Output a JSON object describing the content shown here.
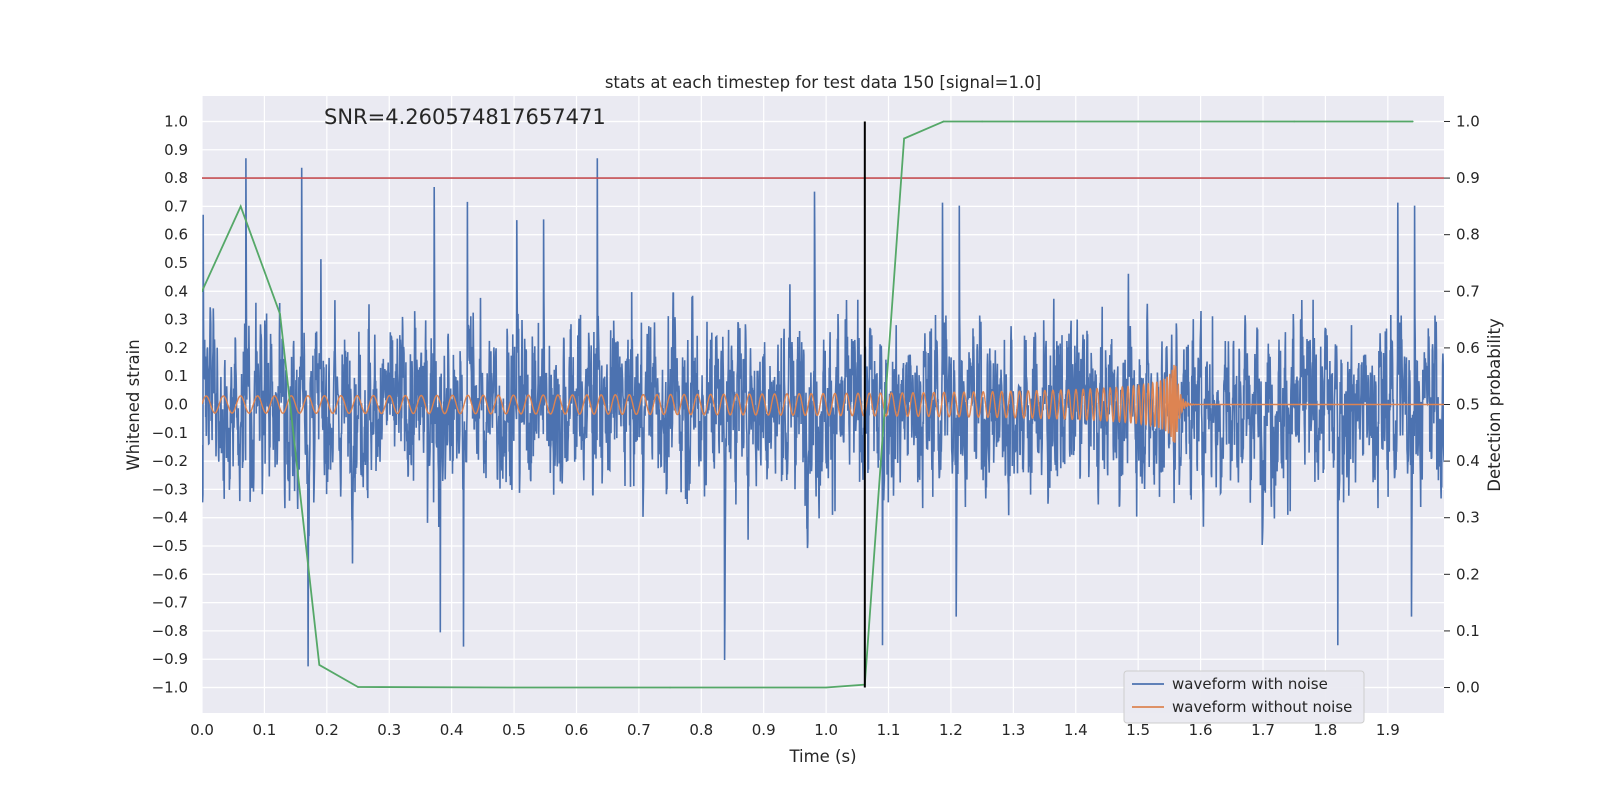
{
  "chart_data": {
    "type": "line",
    "title": "stats at each timestep for test data 150 [signal=1.0]",
    "xlabel": "Time (s)",
    "ylabel": "Whitened strain",
    "y2label": "Detection probability",
    "xlim": [
      0.0,
      1.99
    ],
    "ylim": [
      -1.09,
      1.09
    ],
    "y2lim": [
      -0.045,
      1.045
    ],
    "x_ticks": [
      "0.0",
      "0.1",
      "0.2",
      "0.3",
      "0.4",
      "0.5",
      "0.6",
      "0.7",
      "0.8",
      "0.9",
      "1.0",
      "1.1",
      "1.2",
      "1.3",
      "1.4",
      "1.5",
      "1.6",
      "1.7",
      "1.8",
      "1.9"
    ],
    "y_ticks": [
      "1.0",
      "0.9",
      "0.8",
      "0.7",
      "0.6",
      "0.5",
      "0.4",
      "0.3",
      "0.2",
      "0.1",
      "0.0",
      "−0.1",
      "−0.2",
      "−0.3",
      "−0.4",
      "−0.5",
      "−0.6",
      "−0.7",
      "−0.8",
      "−0.9",
      "−1.0"
    ],
    "y2_ticks": [
      "1.0",
      "0.9",
      "0.8",
      "0.7",
      "0.6",
      "0.5",
      "0.4",
      "0.3",
      "0.2",
      "0.1",
      "0.0"
    ],
    "annotation": "SNR=4.260574817657471",
    "grid": true,
    "legend_position": "lower-right",
    "series": [
      {
        "name": "waveform with noise",
        "color": "#4c72b0",
        "axis": "left",
        "description": "whitened strain, dense noisy signal spanning roughly -0.95 to 0.87",
        "sample_rate": 2048,
        "amplitude_std": 0.3
      },
      {
        "name": "waveform without noise",
        "color": "#dd8452",
        "axis": "left",
        "description": "chirp signal with merger near 1.56 s",
        "start_amplitude": 0.03,
        "peak_amplitude": 0.14,
        "merger_time": 1.56
      },
      {
        "name": "detection probability",
        "color": "#55a868",
        "axis": "right",
        "x": [
          0.0,
          0.062,
          0.125,
          0.188,
          0.25,
          0.5,
          0.75,
          1.0,
          1.062,
          1.125,
          1.188,
          1.25,
          1.5,
          1.75,
          1.94
        ],
        "y": [
          0.7,
          0.85,
          0.66,
          0.04,
          0.001,
          0.0,
          0.0,
          0.0,
          0.005,
          0.97,
          1.0,
          1.0,
          1.0,
          1.0,
          1.0
        ]
      }
    ],
    "threshold": {
      "axis": "right",
      "value": 0.9,
      "color": "#c44e52"
    },
    "vertical_line": {
      "x": 1.062,
      "color": "#000000"
    }
  }
}
